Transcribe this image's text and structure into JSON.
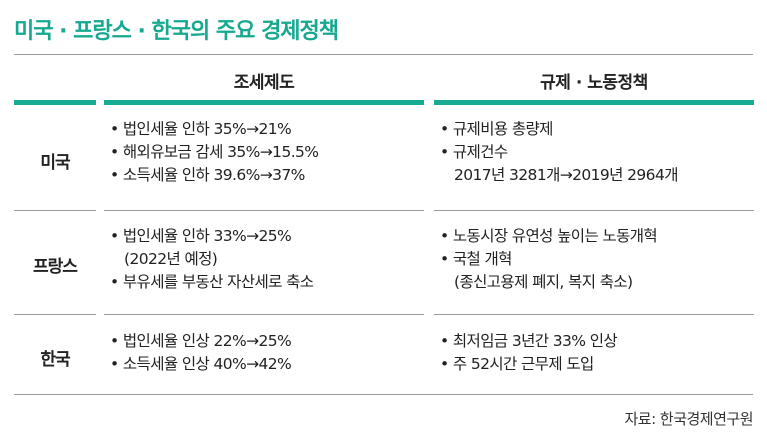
{
  "title": "미국 · 프랑스 · 한국의 주요 경제정책",
  "columns": {
    "tax": "조세제도",
    "regulation": "규제 · 노동정책"
  },
  "rows": [
    {
      "label": "미국",
      "tax": [
        "• 법인세율 인하 35%→21%",
        "• 해외유보금 감세 35%→15.5%",
        "• 소득세율 인하 39.6%→37%"
      ],
      "regulation": [
        "• 규제비용 총량제",
        "• 규제건수",
        "2017년 3281개→2019년 2964개"
      ]
    },
    {
      "label": "프랑스",
      "tax": [
        "• 법인세율 인하 33%→25%",
        "(2022년 예정)",
        "• 부유세를 부동산 자산세로 축소"
      ],
      "regulation": [
        "• 노동시장 유연성 높이는 노동개혁",
        "• 국철 개혁",
        "(종신고용제 폐지, 복지 축소)"
      ]
    },
    {
      "label": "한국",
      "tax": [
        "• 법인세율 인상 22%→25%",
        "• 소득세율 인상 40%→42%"
      ],
      "regulation": [
        "• 최저임금 3년간 33% 인상",
        "• 주 52시간 근무제 도입"
      ]
    }
  ],
  "source": "자료: 한국경제연구원",
  "colors": {
    "accent": "#18ad92",
    "title": "#16a98f"
  }
}
